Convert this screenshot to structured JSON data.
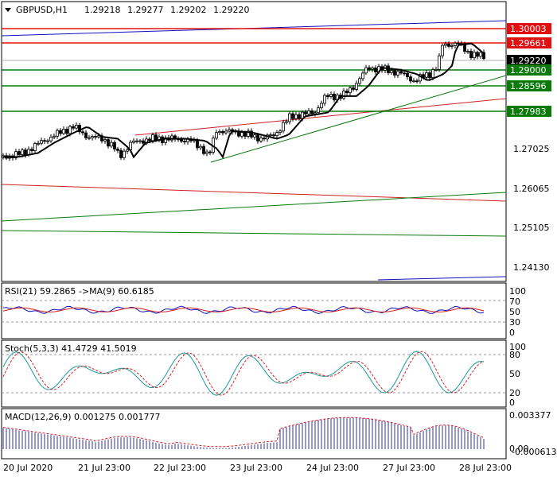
{
  "title_bar": {
    "symbol": "GBPUSD,H1",
    "open": "1.29218",
    "high": "1.29277",
    "low": "1.29202",
    "close": "1.29220"
  },
  "main": {
    "y_ticks": [
      "1.27025",
      "1.26065",
      "1.25105",
      "1.24130"
    ],
    "levels": [
      {
        "label": "1.30003",
        "color": "#e01010"
      },
      {
        "label": "1.29661",
        "color": "#e01010"
      },
      {
        "label": "1.29220",
        "color": "#000000"
      },
      {
        "label": "1.29000",
        "color": "#0a7a0a"
      },
      {
        "label": "1.28596",
        "color": "#0a7a0a"
      },
      {
        "label": "1.27983",
        "color": "#0a7a0a"
      }
    ]
  },
  "rsi": {
    "label": "RSI(21) 59.2865  ->MA(9) 60.6185",
    "ticks": [
      "100",
      "70",
      "50",
      "30",
      "0"
    ]
  },
  "stoch": {
    "label": "Stoch(5,3,3) 41.4729 41.5019",
    "ticks": [
      "100",
      "80",
      "50",
      "20",
      "0"
    ]
  },
  "macd": {
    "label": "MACD(12,26,9) 0.001275 0.001777",
    "ticks": [
      "0.003377",
      "0.00",
      "-0.000613"
    ]
  },
  "x_axis": [
    "20 Jul 2020",
    "21 Jul 23:00",
    "22 Jul 23:00",
    "23 Jul 23:00",
    "24 Jul 23:00",
    "27 Jul 23:00",
    "28 Jul 23:00"
  ],
  "chart_data": {
    "type": "line",
    "note_series": "Candlestick price history plotted as close approximations",
    "x": [
      "20 Jul 2020",
      "21 Jul 23:00",
      "22 Jul 23:00",
      "23 Jul 23:00",
      "24 Jul 23:00",
      "27 Jul 23:00",
      "28 Jul 23:00"
    ],
    "series": [
      {
        "values": [
          1.267,
          1.272,
          1.271,
          1.2725,
          1.282,
          1.29,
          1.2922
        ]
      }
    ],
    "ylim": [
      1.239,
      1.302
    ]
  }
}
